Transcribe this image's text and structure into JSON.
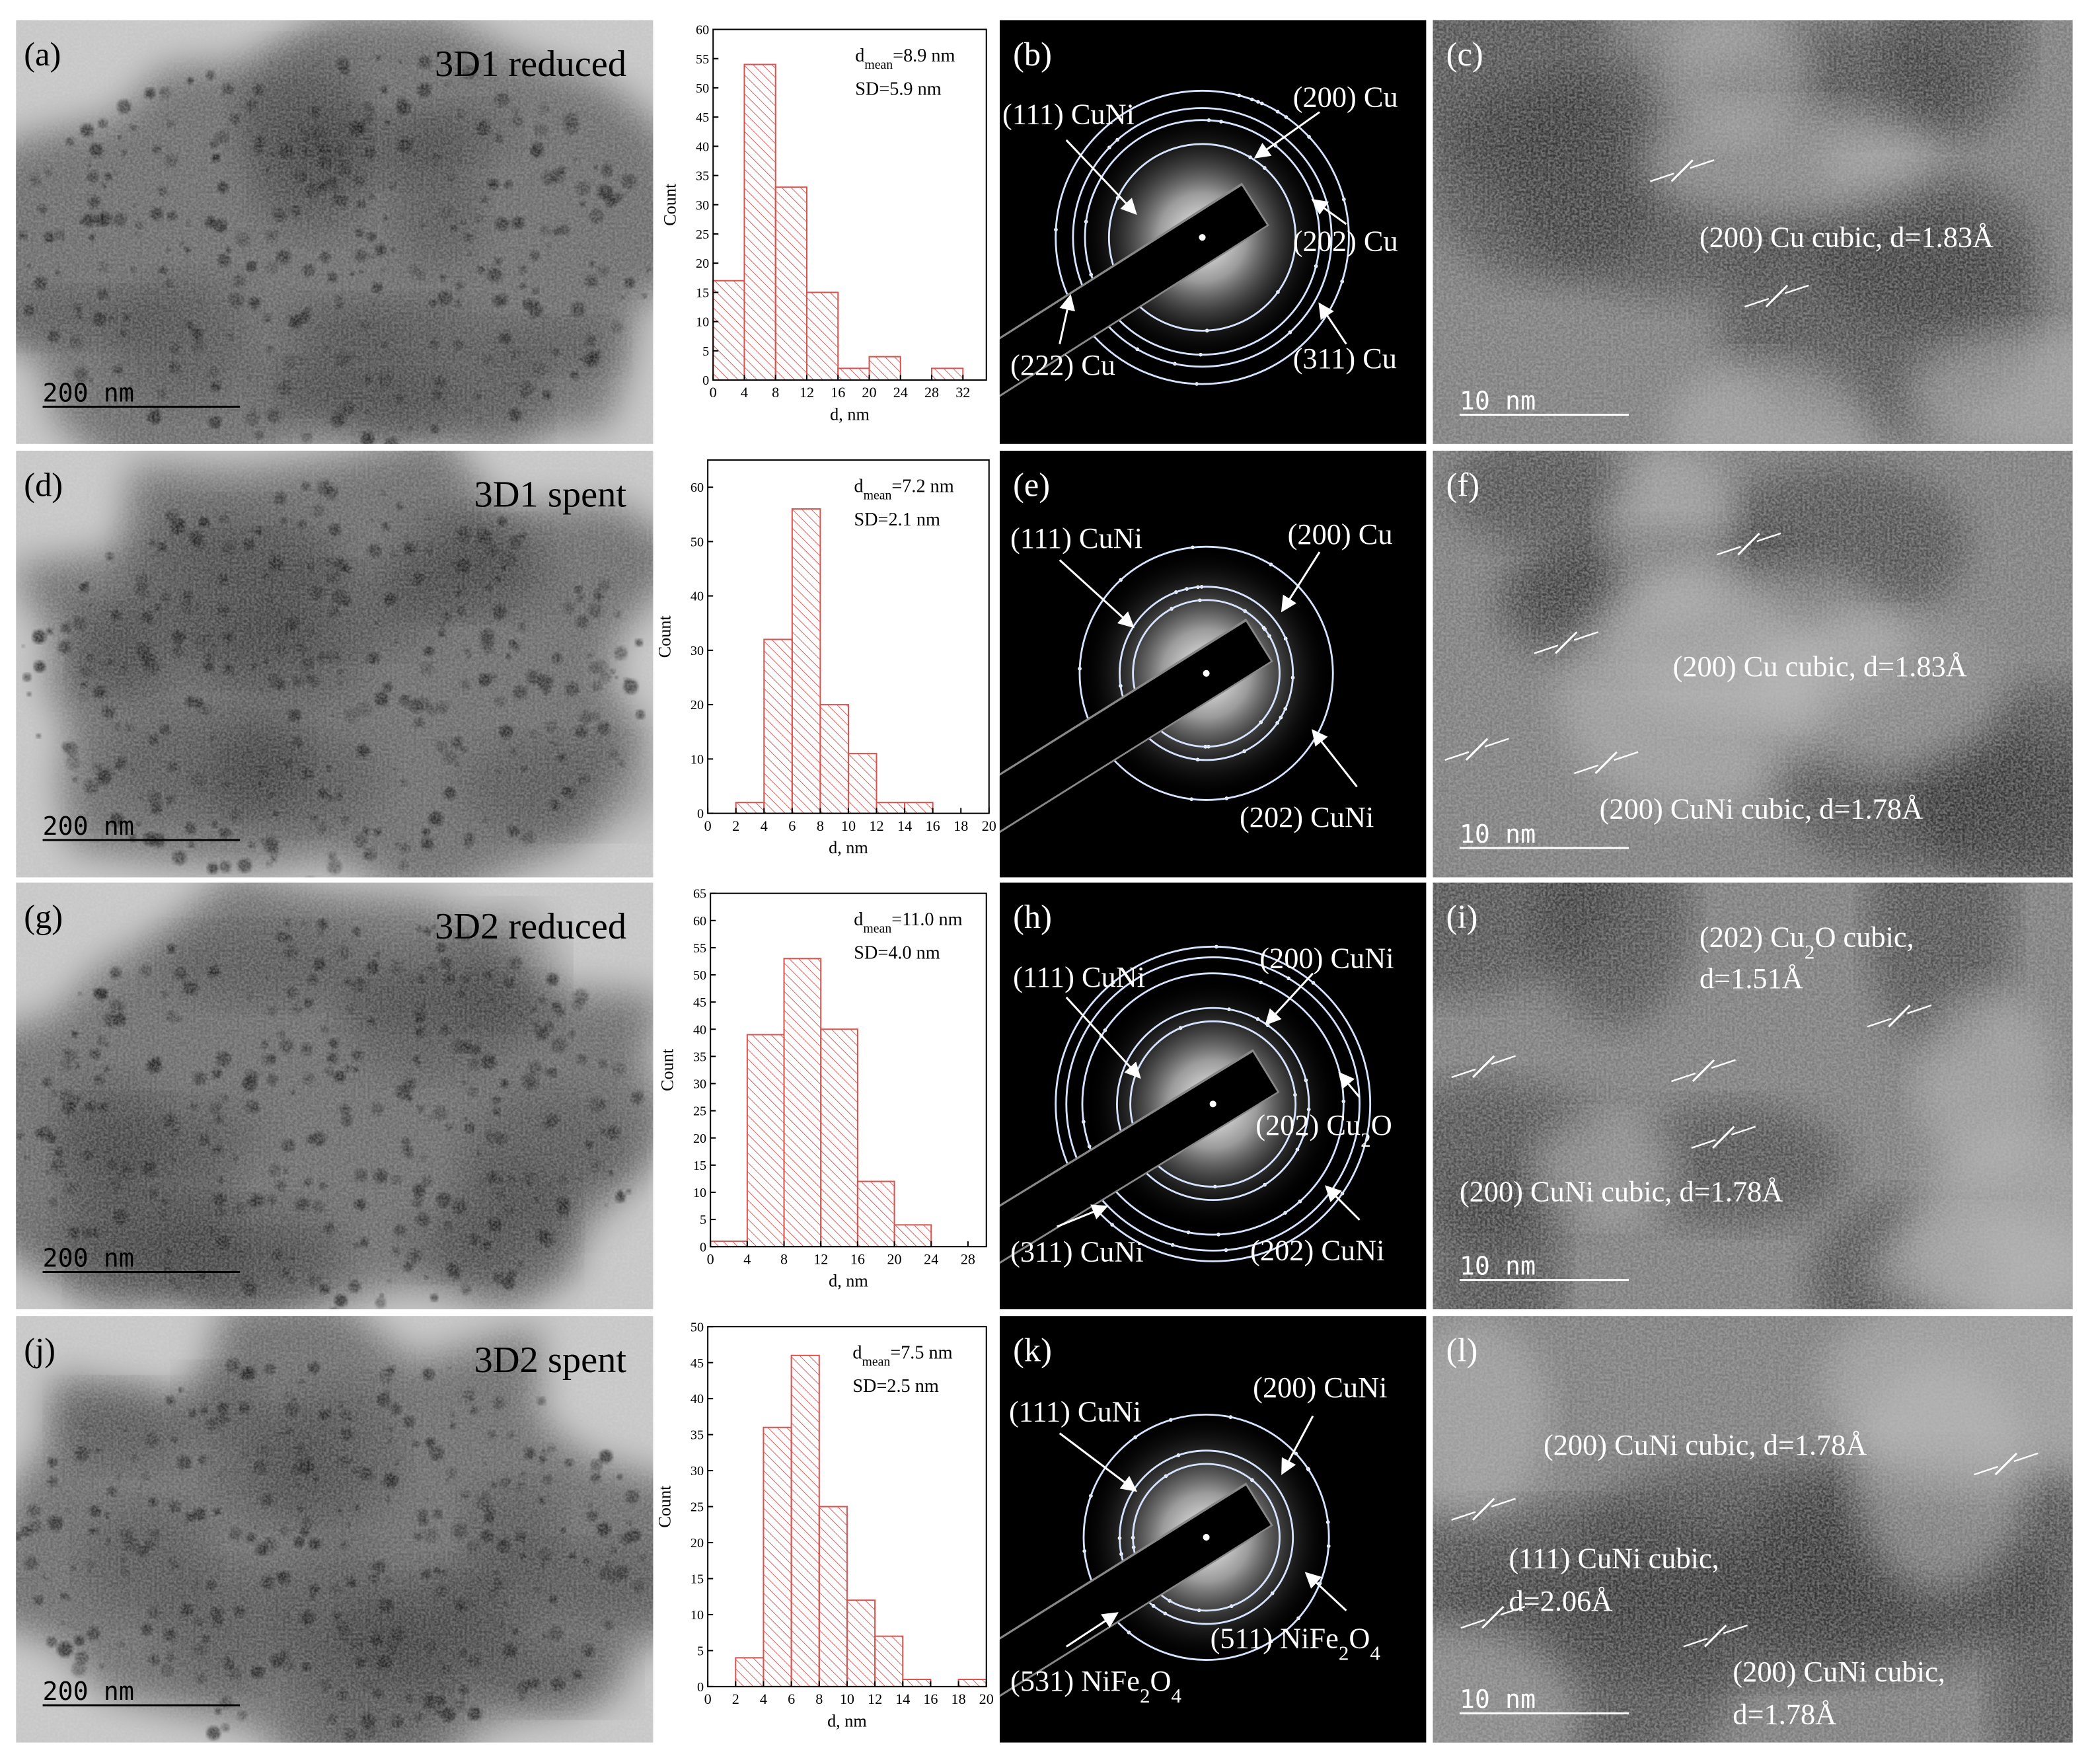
{
  "chart_data": [
    {
      "type": "histogram",
      "bins": [
        0,
        4,
        8,
        12,
        16,
        20,
        24,
        28,
        32
      ],
      "values": [
        17,
        54,
        33,
        15,
        2,
        4,
        0,
        2
      ],
      "color": "#d9534f",
      "xlim": [
        0,
        35
      ],
      "xticks": [
        0,
        4,
        8,
        12,
        16,
        20,
        24,
        28,
        32
      ],
      "ylim": [
        0,
        60
      ],
      "yticks": [
        0,
        5,
        10,
        15,
        20,
        25,
        30,
        35,
        40,
        45,
        50,
        55,
        60
      ],
      "xlabel": "d, nm",
      "ylabel": "Count",
      "annotations": [
        [
          "d",
          "mean",
          "=8.9 nm"
        ],
        [
          "SD=5.9 nm"
        ]
      ]
    },
    {
      "type": "histogram",
      "bins": [
        2,
        4,
        6,
        8,
        10,
        12,
        14,
        16
      ],
      "values": [
        2,
        32,
        56,
        20,
        11,
        2,
        2
      ],
      "color": "#d9534f",
      "xlim": [
        0,
        20
      ],
      "xticks": [
        0,
        2,
        4,
        6,
        8,
        10,
        12,
        14,
        16,
        18,
        20
      ],
      "ylim": [
        0,
        65
      ],
      "yticks": [
        0,
        10,
        20,
        30,
        40,
        50,
        60
      ],
      "xlabel": "d, nm",
      "ylabel": "Count",
      "annotations": [
        [
          "d",
          "mean",
          "=7.2 nm"
        ],
        [
          "SD=2.1 nm"
        ]
      ]
    },
    {
      "type": "histogram",
      "bins": [
        0,
        4,
        8,
        12,
        16,
        20,
        24
      ],
      "values": [
        1,
        39,
        53,
        40,
        12,
        4
      ],
      "color": "#d9534f",
      "xlim": [
        0,
        30
      ],
      "xticks": [
        0,
        4,
        8,
        12,
        16,
        20,
        24,
        28
      ],
      "ylim": [
        0,
        65
      ],
      "yticks": [
        0,
        5,
        10,
        15,
        20,
        25,
        30,
        35,
        40,
        45,
        50,
        55,
        60,
        65
      ],
      "xlabel": "d, nm",
      "ylabel": "Count",
      "annotations": [
        [
          "d",
          "mean",
          "=11.0 nm"
        ],
        [
          "SD=4.0 nm"
        ]
      ]
    },
    {
      "type": "histogram",
      "bins": [
        2,
        4,
        6,
        8,
        10,
        12,
        14,
        16,
        18,
        20
      ],
      "values": [
        4,
        36,
        46,
        25,
        12,
        7,
        1,
        0,
        1
      ],
      "color": "#d9534f",
      "xlim": [
        0,
        20
      ],
      "xticks": [
        0,
        2,
        4,
        6,
        8,
        10,
        12,
        14,
        16,
        18,
        20
      ],
      "ylim": [
        0,
        50
      ],
      "yticks": [
        0,
        5,
        10,
        15,
        20,
        25,
        30,
        35,
        40,
        45,
        50
      ],
      "xlabel": "d, nm",
      "ylabel": "Count",
      "annotations": [
        [
          "d",
          "mean",
          "=7.5 nm"
        ],
        [
          "SD=2.5 nm"
        ]
      ]
    }
  ],
  "rows": [
    {
      "tem": {
        "label": "(a)",
        "title": "3D1 reduced",
        "scale_bar": "200 nm"
      },
      "saed": {
        "label": "(b)",
        "rings": [
          [
            "(111) CuNi"
          ],
          [
            "(200) Cu"
          ],
          [
            "(202) Cu"
          ],
          [
            "(311) Cu"
          ],
          [
            "(222) Cu"
          ]
        ]
      },
      "hrtem": {
        "label": "(c)",
        "scale_bar": "10 nm",
        "annotations": [
          [
            "(200) Cu cubic, d=1.83Å"
          ]
        ]
      }
    },
    {
      "tem": {
        "label": "(d)",
        "title": "3D1 spent",
        "scale_bar": "200 nm"
      },
      "saed": {
        "label": "(e)",
        "rings": [
          [
            "(111) CuNi"
          ],
          [
            "(200) Cu"
          ],
          [
            "(202) CuNi"
          ]
        ]
      },
      "hrtem": {
        "label": "(f)",
        "scale_bar": "10 nm",
        "annotations": [
          [
            "(200) Cu cubic, d=1.83Å"
          ],
          [
            "(200) CuNi cubic, d=1.78Å"
          ]
        ]
      }
    },
    {
      "tem": {
        "label": "(g)",
        "title": "3D2 reduced",
        "scale_bar": "200 nm"
      },
      "saed": {
        "label": "(h)",
        "rings": [
          [
            "(111) CuNi"
          ],
          [
            "(200) CuNi"
          ],
          [
            "(202) Cu",
            "2",
            "O"
          ],
          [
            "(311) CuNi"
          ],
          [
            "(202) CuNi"
          ]
        ]
      },
      "hrtem": {
        "label": "(i)",
        "scale_bar": "10 nm",
        "annotations": [
          [
            "(202) Cu",
            "2",
            "O cubic,"
          ],
          [
            "d=1.51Å"
          ],
          [
            "(200) CuNi cubic, d=1.78Å"
          ]
        ]
      }
    },
    {
      "tem": {
        "label": "(j)",
        "title": "3D2 spent",
        "scale_bar": "200 nm"
      },
      "saed": {
        "label": "(k)",
        "rings": [
          [
            "(111) CuNi"
          ],
          [
            "(200) CuNi"
          ],
          [
            "(511) NiFe",
            "2",
            "O",
            "4",
            ""
          ],
          [
            "(531) NiFe",
            "2",
            "O",
            "4",
            ""
          ]
        ]
      },
      "hrtem": {
        "label": "(l)",
        "scale_bar": "10 nm",
        "annotations": [
          [
            "(200) CuNi cubic, d=1.78Å"
          ],
          [
            "(111) CuNi cubic,"
          ],
          [
            "d=2.06Å"
          ],
          [
            "(200) CuNi cubic,"
          ],
          [
            "d=1.78Å"
          ]
        ]
      }
    }
  ]
}
